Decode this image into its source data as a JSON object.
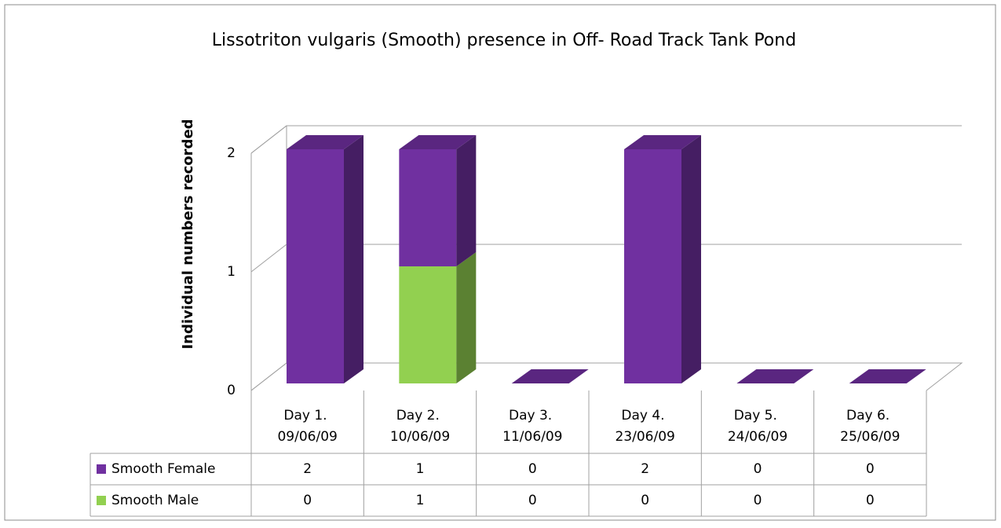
{
  "chart_data": {
    "type": "bar",
    "stacked": true,
    "title": "Lissotriton vulgaris (Smooth)  presence in Off- Road  Track Tank Pond",
    "y_label": "Individual numbers recorded",
    "categories": [
      "Day 1. 09/06/09",
      "Day 2. 10/06/09",
      "Day 3. 11/06/09",
      "Day 4. 23/06/09",
      "Day 5. 24/06/09",
      "Day 6. 25/06/09"
    ],
    "series": [
      {
        "name": "Smooth Female",
        "color": "#7030a0",
        "values": [
          2,
          1,
          0,
          2,
          0,
          0
        ]
      },
      {
        "name": "Smooth Male",
        "color": "#92d050",
        "values": [
          0,
          1,
          0,
          0,
          0,
          0
        ]
      }
    ],
    "ylim": [
      0,
      2
    ],
    "yticks": [
      0,
      1,
      2
    ],
    "grid": true
  }
}
